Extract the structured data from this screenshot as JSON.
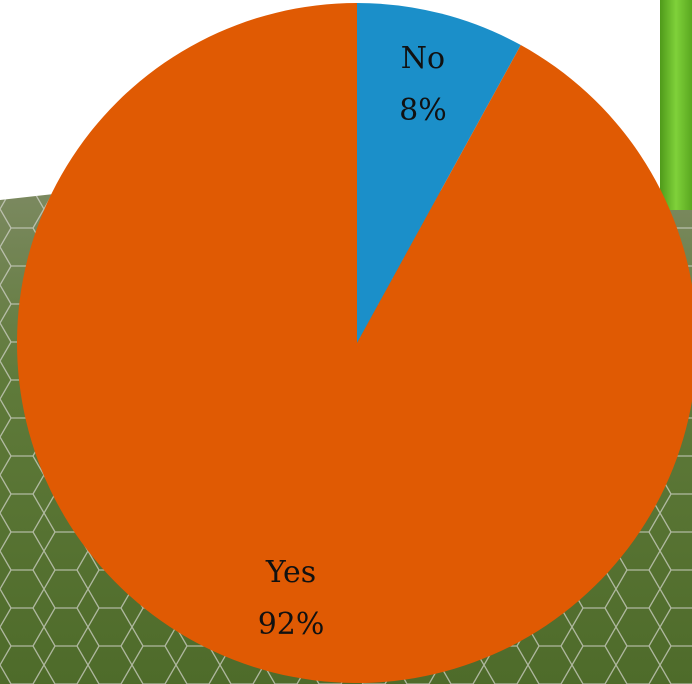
{
  "chart_data": {
    "type": "pie",
    "categories": [
      "No",
      "Yes"
    ],
    "values": [
      8,
      92
    ],
    "value_labels": [
      "8%",
      "92%"
    ],
    "colors": [
      "#1b8fc9",
      "#e05a03"
    ]
  }
}
